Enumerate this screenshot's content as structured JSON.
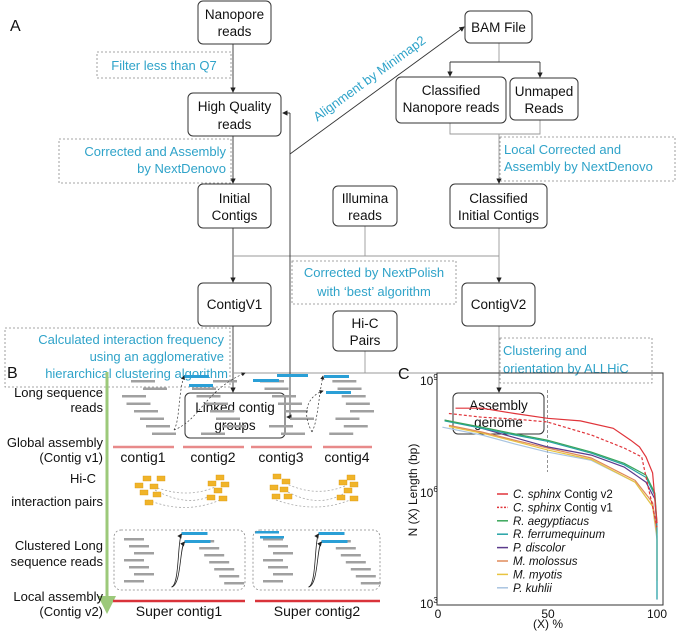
{
  "panel_a": {
    "label": "A",
    "nodes": {
      "nanopore": [
        "Nanopore",
        "reads"
      ],
      "bam": [
        "BAM File"
      ],
      "hq": [
        "High Quality",
        "reads"
      ],
      "classified_np": [
        "Classified",
        "Nanopore reads"
      ],
      "unmapped": [
        "Unmaped",
        "Reads"
      ],
      "initial": [
        "Initial",
        "Contigs"
      ],
      "illumina": [
        "Illumina",
        "reads"
      ],
      "classified_initial": [
        "Classified",
        "Initial Contigs"
      ],
      "contigv1": [
        "ContigV1"
      ],
      "contigv2": [
        "ContigV2"
      ],
      "hic": [
        "Hi-C",
        "Pairs"
      ],
      "linked": [
        "Linked contig",
        "groups"
      ],
      "assembly": [
        "Assembly",
        "genome"
      ]
    },
    "steps": {
      "filter": [
        "Filter less than Q7"
      ],
      "corrected": [
        "Corrected and Assembly",
        "by NextDenovo"
      ],
      "local": [
        "Local Corrected and",
        "Assembly by NextDenovo"
      ],
      "alignment": "Alignment by Minimap2",
      "nextpolish": [
        "Corrected by NextPolish",
        "with ‘best’ algorithm"
      ],
      "calc": [
        "Calculated interaction frequency",
        "using an agglomerative",
        "hierarchical clustering algorithm"
      ],
      "allhic": [
        "Clustering and",
        "orientation by ALLHiC"
      ]
    }
  },
  "panel_b": {
    "label": "B",
    "rows": [
      [
        "Long sequence",
        "reads"
      ],
      [
        "Global assembly",
        "(Contig v1)"
      ],
      [
        "Hi-C",
        "interaction pairs"
      ],
      [
        "Clustered Long",
        "sequence reads"
      ],
      [
        "Local assembly",
        "(Contig v2)"
      ]
    ],
    "contigs": [
      "contig1",
      "contig2",
      "contig3",
      "contig4"
    ],
    "super_contigs": [
      "Super contig1",
      "Super contig2"
    ],
    "colors": {
      "reads": "#a0a0a0",
      "highlight": "#2a9fd6",
      "contig_v1": "#e88a8a",
      "contig_v2": "#d9333a",
      "hic": "#f0b429",
      "axis": "#9cc97a"
    }
  },
  "chart_data": {
    "type": "line",
    "label": "C",
    "title": "",
    "xlabel": "(X) %",
    "ylabel": "N (X) Length (bp)",
    "xlim": [
      0,
      100
    ],
    "ylim_log10": [
      3,
      9
    ],
    "yscale": "log",
    "x_ticks": [
      "0",
      "50",
      "100"
    ],
    "y_ticks": [
      {
        "base": "10",
        "exp": "9"
      },
      {
        "base": "10",
        "exp": "6"
      },
      {
        "base": "10",
        "exp": "3"
      }
    ],
    "reference_line_x": 50,
    "legend_position": "bottom-center",
    "series": [
      {
        "name": "C. sphinx",
        "suffix": " Contig v2",
        "color": "#e0343a",
        "dash": false,
        "x": [
          8,
          20,
          35,
          50,
          65,
          80,
          88,
          92,
          95,
          98,
          100
        ],
        "log10_y": [
          8.24,
          8.24,
          8.1,
          7.97,
          7.9,
          7.7,
          7.38,
          7.2,
          6.93,
          6.5,
          5.15
        ]
      },
      {
        "name": "C. sphinx",
        "suffix": " Contig v1",
        "color": "#e0343a",
        "dash": true,
        "x": [
          5,
          20,
          35,
          50,
          70,
          85,
          93,
          96,
          98,
          100
        ],
        "log10_y": [
          8.1,
          8.0,
          7.95,
          7.87,
          7.52,
          7.17,
          6.93,
          6.12,
          5.6,
          5.04
        ]
      },
      {
        "name": "R. aegyptiacus",
        "suffix": "",
        "color": "#3aa55a",
        "dash": false,
        "x": [
          3,
          20,
          35,
          50,
          70,
          85,
          95,
          99,
          100
        ],
        "log10_y": [
          7.92,
          7.73,
          7.55,
          7.38,
          7.06,
          6.76,
          6.44,
          5.96,
          5.15
        ]
      },
      {
        "name": "R. ferrumequinum",
        "suffix": "",
        "color": "#25a3a6",
        "dash": false,
        "x": [
          3,
          20,
          35,
          50,
          70,
          85,
          95,
          99,
          100,
          100
        ],
        "log10_y": [
          7.9,
          7.7,
          7.52,
          7.35,
          7.03,
          6.72,
          6.38,
          5.9,
          5.0,
          3.1
        ]
      },
      {
        "name": "P. discolor",
        "suffix": "",
        "color": "#5b3b8c",
        "dash": false,
        "x": [
          3,
          20,
          35,
          50,
          70,
          85,
          95,
          99,
          100
        ],
        "log10_y": [
          7.92,
          7.7,
          7.45,
          7.2,
          6.98,
          6.66,
          6.25,
          5.8,
          5.04
        ]
      },
      {
        "name": "M. molossus",
        "suffix": "",
        "color": "#e08a5a",
        "dash": false,
        "x": [
          5,
          20,
          35,
          50,
          70,
          90,
          98,
          100
        ],
        "log10_y": [
          7.78,
          7.6,
          7.38,
          7.17,
          6.9,
          6.3,
          5.7,
          4.9
        ]
      },
      {
        "name": "M. myotis",
        "suffix": "",
        "color": "#e8c440",
        "dash": false,
        "x": [
          5,
          20,
          35,
          50,
          70,
          90,
          98,
          100,
          100
        ],
        "log10_y": [
          7.75,
          7.57,
          7.35,
          7.12,
          6.86,
          6.25,
          5.6,
          4.8,
          3.6
        ]
      },
      {
        "name": "P. kuhlii",
        "suffix": "",
        "color": "#a9c4e0",
        "dash": false,
        "x": [
          2,
          20,
          35,
          50,
          70,
          90,
          98,
          100,
          100
        ],
        "log10_y": [
          7.73,
          7.52,
          7.28,
          7.06,
          6.84,
          6.25,
          5.6,
          4.7,
          3.08
        ]
      }
    ]
  }
}
